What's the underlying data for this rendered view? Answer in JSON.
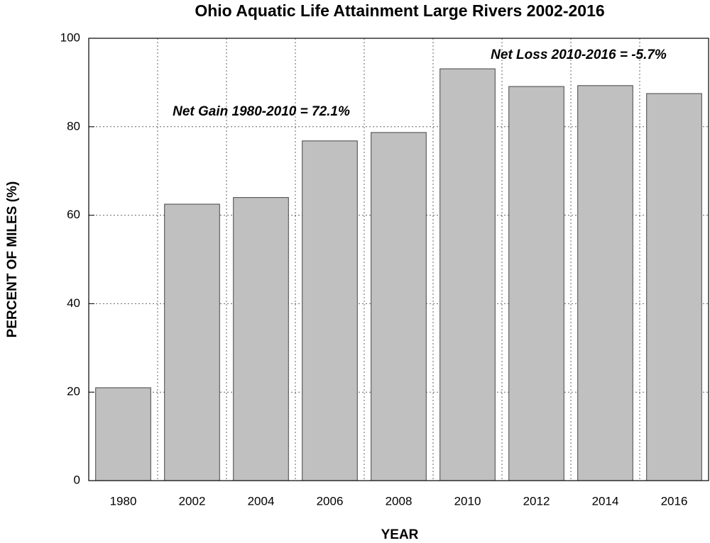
{
  "chart_data": {
    "type": "bar",
    "title": "Ohio Aquatic Life Attainment Large Rivers 2002-2016",
    "x_label": "YEAR",
    "y_label": "PERCENT OF MILES (%)",
    "categories": [
      "1980",
      "2002",
      "2004",
      "2006",
      "2008",
      "2010",
      "2012",
      "2014",
      "2016"
    ],
    "values": [
      21,
      62.5,
      64,
      76.8,
      78.7,
      93.1,
      89.1,
      89.3,
      87.5
    ],
    "color": "#c0c0c0",
    "ylim": [
      0,
      100
    ],
    "yticks": [
      0,
      20,
      40,
      60,
      80,
      100
    ],
    "grid": true,
    "annotations": [
      "Net Gain 1980-2010 = 72.1%",
      "Net Loss 2010-2016 = -5.7%"
    ]
  }
}
